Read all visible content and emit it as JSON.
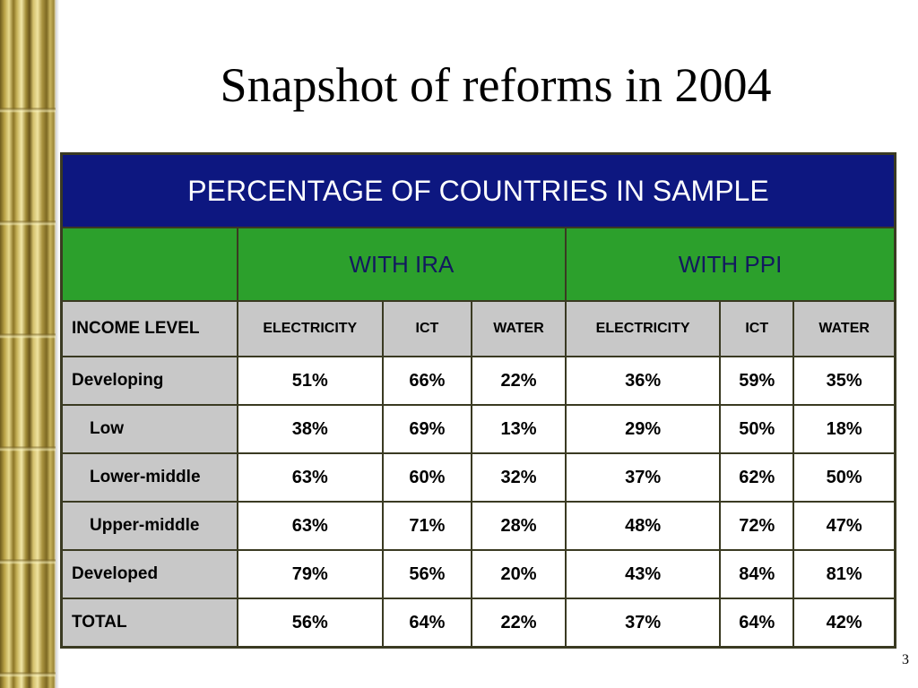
{
  "slide": {
    "title": "Snapshot of reforms in 2004",
    "page_number": "3"
  },
  "table": {
    "header": "PERCENTAGE OF COUNTRIES IN SAMPLE",
    "groups": [
      "WITH IRA",
      "WITH PPI"
    ],
    "income_label": "INCOME LEVEL",
    "columns": [
      "ELECTRICITY",
      "ICT",
      "WATER",
      "ELECTRICITY",
      "ICT",
      "WATER"
    ],
    "rows": [
      {
        "label": "Developing",
        "values": [
          "51%",
          "66%",
          "22%",
          "36%",
          "59%",
          "35%"
        ]
      },
      {
        "label": "Low",
        "values": [
          "38%",
          "69%",
          "13%",
          "29%",
          "50%",
          "18%"
        ]
      },
      {
        "label": "Lower-middle",
        "values": [
          "63%",
          "60%",
          "32%",
          "37%",
          "62%",
          "50%"
        ]
      },
      {
        "label": "Upper-middle",
        "values": [
          "63%",
          "71%",
          "28%",
          "48%",
          "72%",
          "47%"
        ]
      },
      {
        "label": "Developed",
        "values": [
          "79%",
          "56%",
          "20%",
          "43%",
          "84%",
          "81%"
        ]
      },
      {
        "label": "TOTAL",
        "values": [
          "56%",
          "64%",
          "22%",
          "37%",
          "64%",
          "42%"
        ]
      }
    ]
  }
}
